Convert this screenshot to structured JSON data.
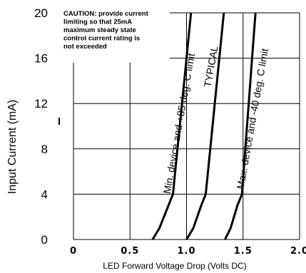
{
  "chart_data": {
    "type": "line",
    "xlabel": "LED Forward  Voltage Drop (Volts DC)",
    "ylabel": "Input Current (mA)",
    "xlim": [
      0,
      2.0
    ],
    "ylim": [
      0,
      20
    ],
    "x_ticks": [
      "0",
      "0.5",
      "1.0",
      "1.5",
      "2.0"
    ],
    "y_ticks": [
      "0",
      "4",
      "8",
      "12",
      "16",
      "20"
    ],
    "grid": true,
    "annotation": [
      "CAUTION: provide current",
      "limiting so that 25mA",
      "maximum steady state",
      "control current rating is",
      "not exceeded"
    ],
    "series": [
      {
        "name": "Min. device and +85 deg. C limit",
        "points": [
          [
            0.7,
            0
          ],
          [
            0.76,
            1
          ],
          [
            0.84,
            3
          ],
          [
            0.88,
            4
          ],
          [
            0.92,
            8
          ],
          [
            0.96,
            12
          ],
          [
            1.0,
            16
          ],
          [
            1.04,
            20
          ]
        ]
      },
      {
        "name": "TYPICAL",
        "points": [
          [
            1.0,
            0
          ],
          [
            1.06,
            1
          ],
          [
            1.13,
            3
          ],
          [
            1.17,
            4
          ],
          [
            1.21,
            8
          ],
          [
            1.25,
            12
          ],
          [
            1.29,
            16
          ],
          [
            1.33,
            20
          ]
        ]
      },
      {
        "name": "Max. device and -40 deg. C limit",
        "points": [
          [
            1.34,
            0
          ],
          [
            1.39,
            1
          ],
          [
            1.45,
            3
          ],
          [
            1.49,
            4
          ],
          [
            1.52,
            8
          ],
          [
            1.55,
            12
          ],
          [
            1.58,
            16
          ],
          [
            1.61,
            20
          ]
        ]
      }
    ],
    "colors": {
      "line": "#000000",
      "grid": "#000000",
      "background": "#ffffff"
    }
  }
}
